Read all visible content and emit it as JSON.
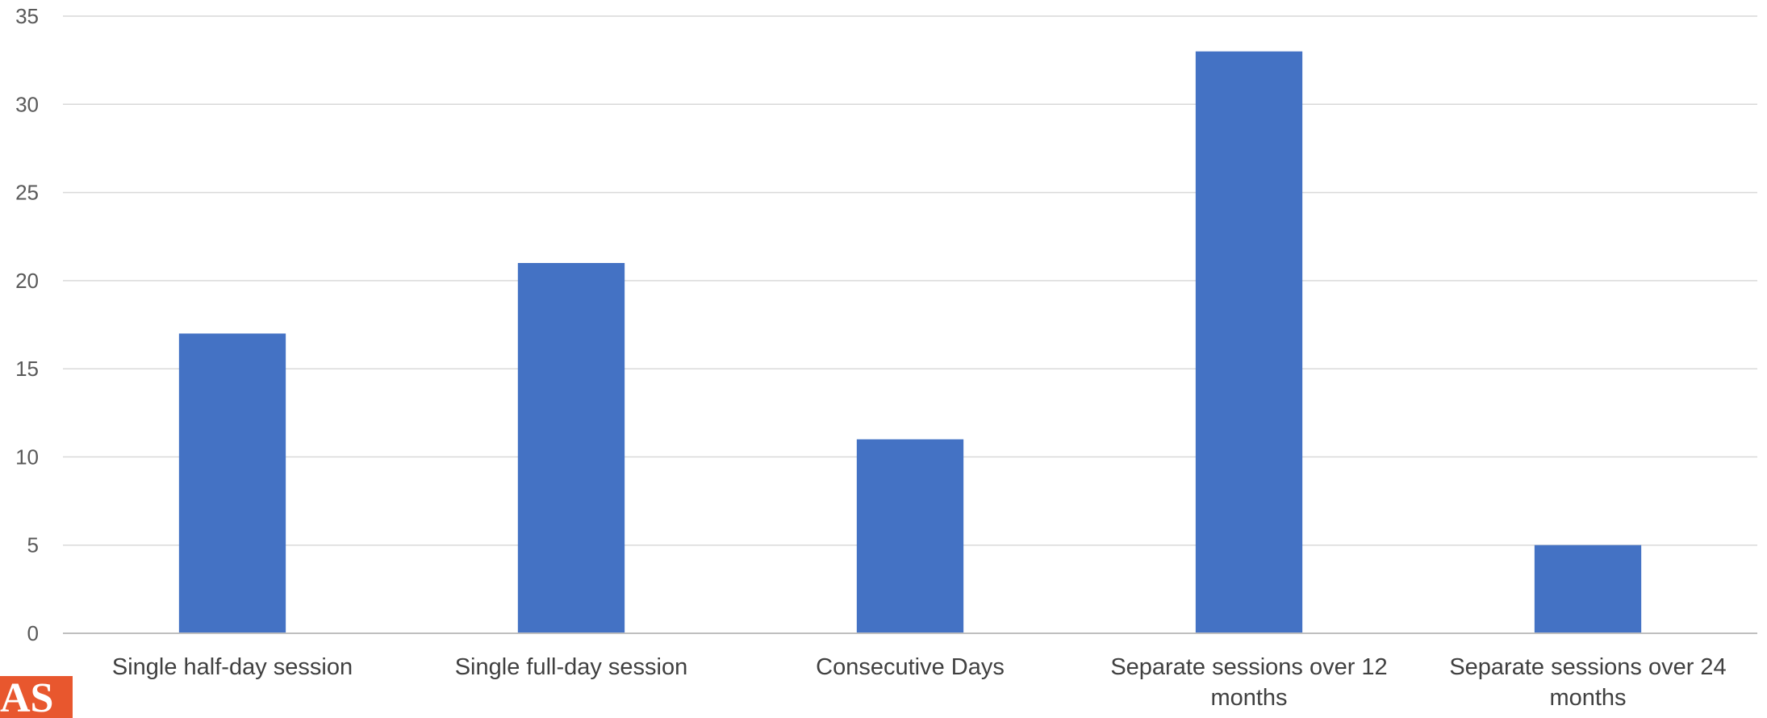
{
  "chart_data": {
    "type": "bar",
    "categories": [
      [
        "Single half-day session"
      ],
      [
        "Single full-day session"
      ],
      [
        "Consecutive Days"
      ],
      [
        "Separate sessions over 12",
        "months"
      ],
      [
        "Separate sessions over 24",
        "months"
      ]
    ],
    "values": [
      17,
      21,
      11,
      33,
      5
    ],
    "ylim": [
      0,
      35
    ],
    "yticks": [
      0,
      5,
      10,
      15,
      20,
      25,
      30,
      35
    ],
    "grid": true,
    "colors": {
      "bar": "#4472C4",
      "grid": "#D9D9D9",
      "axis": "#BFBFBF"
    }
  },
  "logo": {
    "text": "AS",
    "color": "#E8572E"
  }
}
